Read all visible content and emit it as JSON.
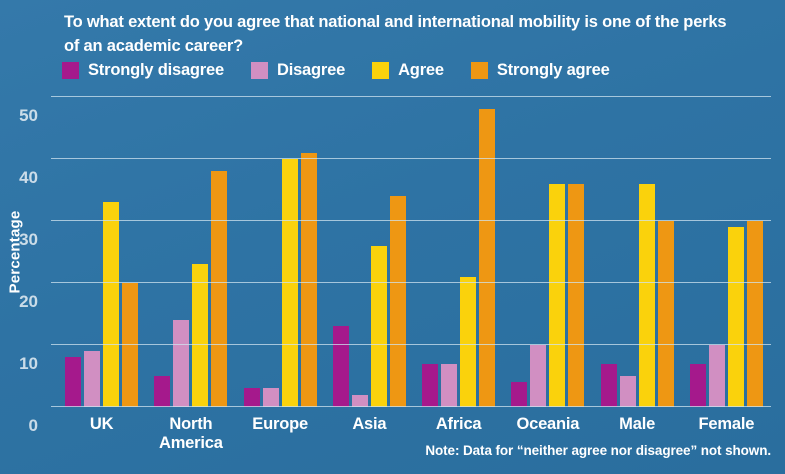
{
  "title": "To what extent do you agree that national and international mobility is one of the perks of an academic career?",
  "note": "Note: Data for “neither agree nor disagree” not shown.",
  "colors": {
    "background": "#2e73a4",
    "grid": "#cfe3ef",
    "text": "#ffffff"
  },
  "chart_data": {
    "type": "bar",
    "title": "To what extent do you agree that national and international mobility is one of the perks of an academic career?",
    "xlabel": "",
    "ylabel": "Percentage",
    "ylim": [
      0,
      50
    ],
    "yticks": [
      0,
      10,
      20,
      30,
      40,
      50
    ],
    "grid": true,
    "legend_position": "top",
    "categories": [
      "UK",
      "North America",
      "Europe",
      "Asia",
      "Africa",
      "Oceania",
      "Male",
      "Female"
    ],
    "series": [
      {
        "name": "Strongly disagree",
        "color": "#a5198c",
        "values": [
          8,
          5,
          3,
          13,
          7,
          4,
          7,
          7
        ]
      },
      {
        "name": "Disagree",
        "color": "#d18fc2",
        "values": [
          9,
          14,
          3,
          2,
          7,
          10,
          5,
          10
        ]
      },
      {
        "name": "Agree",
        "color": "#fad20c",
        "values": [
          33,
          23,
          40,
          26,
          21,
          36,
          36,
          29
        ]
      },
      {
        "name": "Strongly agree",
        "color": "#ee9713",
        "values": [
          20,
          38,
          41,
          34,
          48,
          36,
          30,
          30
        ]
      }
    ]
  }
}
